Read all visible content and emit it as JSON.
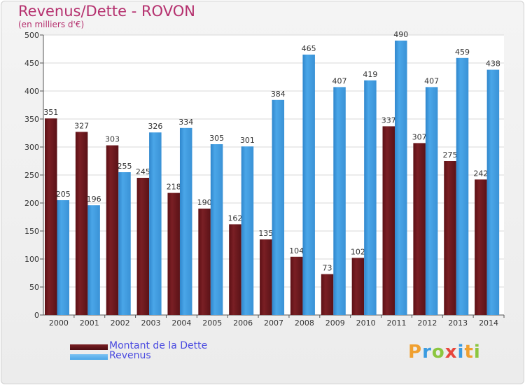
{
  "header": {
    "title": "Revenus/Dette - ROVON",
    "subtitle": "(en milliers d'€)"
  },
  "chart_data": {
    "type": "bar",
    "categories": [
      "2000",
      "2001",
      "2002",
      "2003",
      "2004",
      "2005",
      "2006",
      "2007",
      "2008",
      "2009",
      "2010",
      "2011",
      "2012",
      "2013",
      "2014"
    ],
    "series": [
      {
        "name": "Montant de la Dette",
        "color": "#7a1f24",
        "values": [
          351,
          327,
          303,
          245,
          218,
          190,
          162,
          135,
          104,
          73,
          102,
          337,
          307,
          275,
          242
        ]
      },
      {
        "name": "Revenus",
        "color": "#4aa6e8",
        "values": [
          205,
          196,
          255,
          326,
          334,
          305,
          301,
          384,
          465,
          407,
          419,
          490,
          407,
          459,
          438
        ]
      }
    ],
    "ylim": [
      0,
      500
    ],
    "yticks": [
      0,
      50,
      100,
      150,
      200,
      250,
      300,
      350,
      400,
      450,
      500
    ],
    "grid": true,
    "legend": "bottom-left"
  },
  "logo": {
    "letters": [
      {
        "ch": "P",
        "color": "#f0a030"
      },
      {
        "ch": "r",
        "color": "#3a9be0"
      },
      {
        "ch": "o",
        "color": "#8cc63f"
      },
      {
        "ch": "x",
        "color": "#e8463c"
      },
      {
        "ch": "i",
        "color": "#3a9be0"
      },
      {
        "ch": "t",
        "color": "#f0a030"
      },
      {
        "ch": "i",
        "color": "#8cc63f"
      }
    ]
  }
}
